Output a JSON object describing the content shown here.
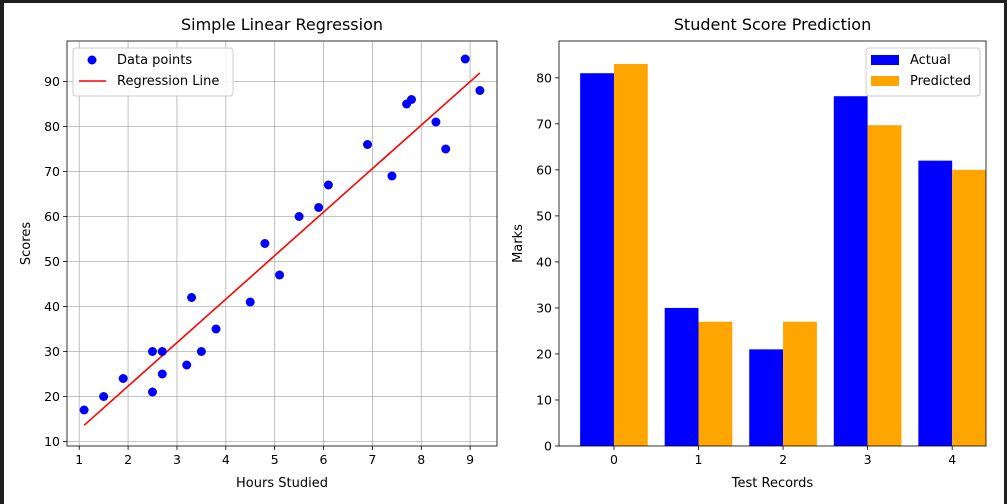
{
  "chart_data": [
    {
      "type": "scatter",
      "title": "Simple Linear Regression",
      "xlabel": "Hours Studied",
      "ylabel": "Scores",
      "xlim": [
        0.75,
        9.55
      ],
      "ylim": [
        9.0,
        99.0
      ],
      "xticks": [
        1,
        2,
        3,
        4,
        5,
        6,
        7,
        8,
        9
      ],
      "yticks": [
        10,
        20,
        30,
        40,
        50,
        60,
        70,
        80,
        90
      ],
      "grid": true,
      "legend_position": "top-left",
      "series": [
        {
          "name": "Data points",
          "kind": "scatter",
          "color": "#0000ff",
          "points": [
            [
              1.1,
              17
            ],
            [
              1.5,
              20
            ],
            [
              1.9,
              24
            ],
            [
              2.5,
              21
            ],
            [
              2.5,
              30
            ],
            [
              2.7,
              25
            ],
            [
              2.7,
              30
            ],
            [
              3.2,
              27
            ],
            [
              3.3,
              42
            ],
            [
              3.5,
              30
            ],
            [
              3.8,
              35
            ],
            [
              4.5,
              41
            ],
            [
              4.8,
              54
            ],
            [
              5.1,
              47
            ],
            [
              5.5,
              60
            ],
            [
              5.9,
              62
            ],
            [
              6.1,
              67
            ],
            [
              6.9,
              76
            ],
            [
              7.4,
              69
            ],
            [
              7.7,
              85
            ],
            [
              7.8,
              86
            ],
            [
              8.3,
              81
            ],
            [
              8.5,
              75
            ],
            [
              8.9,
              95
            ],
            [
              9.2,
              88
            ]
          ]
        },
        {
          "name": "Regression Line",
          "kind": "line",
          "color": "#ff0000",
          "points": [
            [
              1.1,
              13.6
            ],
            [
              9.2,
              91.9
            ]
          ]
        }
      ]
    },
    {
      "type": "bar",
      "title": "Student Score Prediction",
      "xlabel": "Test Records",
      "ylabel": "Marks",
      "categories": [
        "0",
        "1",
        "2",
        "3",
        "4"
      ],
      "xlim": [
        -0.65,
        4.4
      ],
      "ylim": [
        0,
        88
      ],
      "yticks": [
        0,
        10,
        20,
        30,
        40,
        50,
        60,
        70,
        80
      ],
      "grid": false,
      "legend_position": "top-right",
      "series": [
        {
          "name": "Actual",
          "color": "#0000ff",
          "values": [
            81,
            30,
            21,
            76,
            62
          ]
        },
        {
          "name": "Predicted",
          "color": "#ffa500",
          "values": [
            83,
            27,
            27,
            69.7,
            60
          ]
        }
      ]
    }
  ]
}
